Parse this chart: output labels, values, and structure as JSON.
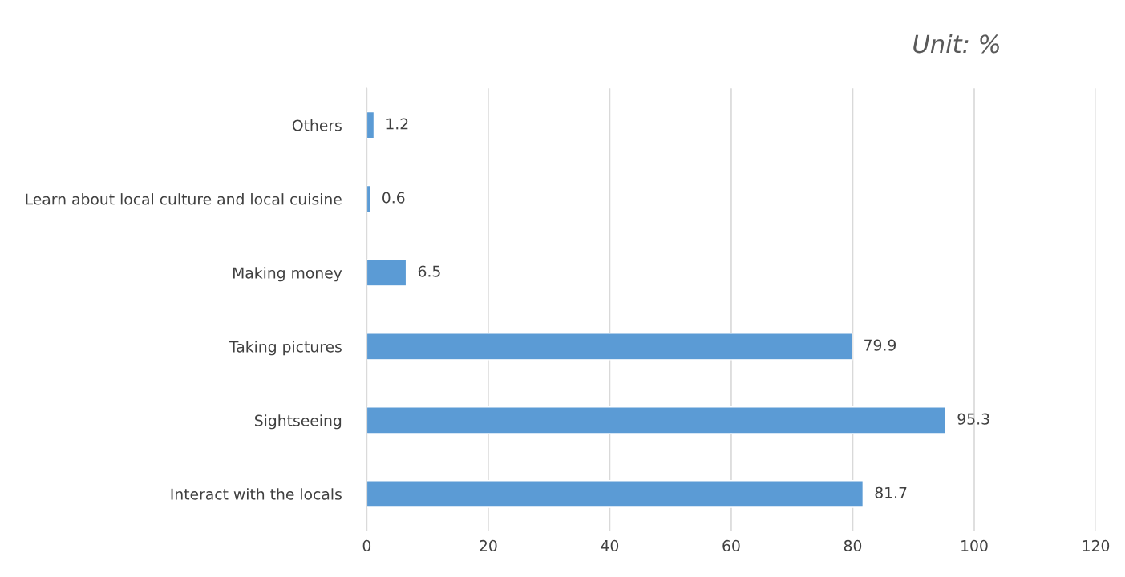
{
  "chart_data": {
    "type": "bar",
    "orientation": "horizontal",
    "categories": [
      "Others",
      "Learn about local culture and local cuisine",
      "Making money",
      "Taking pictures",
      "Sightseeing",
      "Interact with the locals"
    ],
    "values": [
      1.2,
      0.6,
      6.5,
      79.9,
      95.3,
      81.7
    ],
    "color": "#5b9bd5",
    "xlim": [
      0,
      120
    ],
    "xticks": [
      0,
      20,
      40,
      60,
      80,
      100,
      120
    ],
    "grid": "x",
    "data_labels": true,
    "legend": false,
    "annotations": [
      "Unit: %"
    ]
  }
}
